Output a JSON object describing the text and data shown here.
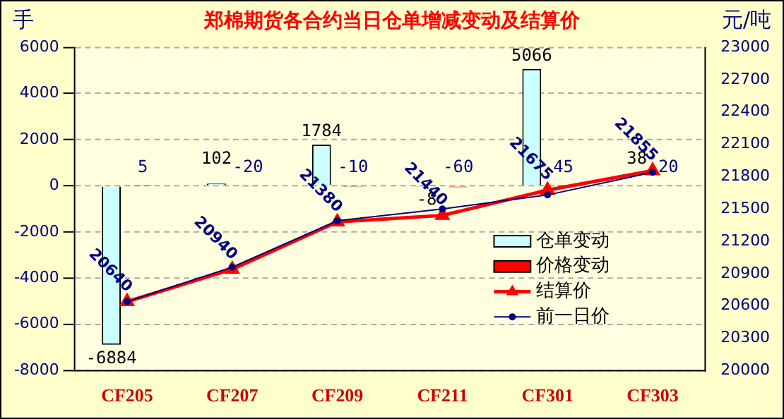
{
  "chart_data": {
    "type": "bar",
    "title": "郑棉期货各合约当日仓单增减变动及结算价",
    "ylabel": "手",
    "y2label": "元/吨",
    "categories": [
      "CF205",
      "CF207",
      "CF209",
      "CF211",
      "CF301",
      "CF303"
    ],
    "series": [
      {
        "name": "仓单变动",
        "color": "#ccffff",
        "values": [
          -6884,
          102,
          1784,
          -8,
          5066,
          38
        ],
        "value_labels": [
          "-6884",
          "102",
          "1784",
          "-8",
          "5066",
          "38"
        ]
      },
      {
        "name": "价格变动",
        "color": "#ff0000",
        "values": [
          5,
          -20,
          -10,
          -60,
          45,
          20
        ],
        "value_labels": [
          "5",
          "-20",
          "-10",
          "-60",
          "45",
          "20"
        ]
      },
      {
        "name": "结算价",
        "type": "line",
        "axis": "y2",
        "color": "#ff0000",
        "marker": "triangle",
        "values": [
          20640,
          20940,
          21380,
          21440,
          21675,
          21855
        ],
        "value_labels": [
          "20640",
          "20940",
          "21380",
          "21440",
          "21675",
          "21855"
        ]
      },
      {
        "name": "前一日价",
        "type": "line",
        "axis": "y2",
        "color": "#000080",
        "marker": "circle",
        "values": [
          20640,
          20960,
          21390,
          21500,
          21630,
          21840
        ]
      }
    ],
    "ylim": [
      -8000,
      6000
    ],
    "yticks": [
      -8000,
      -6000,
      -4000,
      -2000,
      0,
      2000,
      4000,
      6000
    ],
    "y2lim": [
      20000,
      23000
    ],
    "y2ticks": [
      20000,
      20300,
      20600,
      20900,
      21200,
      21500,
      21800,
      22100,
      22400,
      22700,
      23000
    ],
    "grid": "y",
    "legend": "right"
  }
}
